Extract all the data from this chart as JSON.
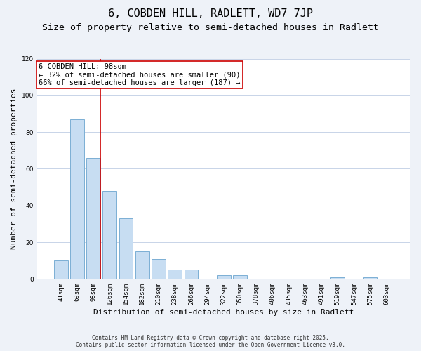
{
  "title": "6, COBDEN HILL, RADLETT, WD7 7JP",
  "subtitle": "Size of property relative to semi-detached houses in Radlett",
  "xlabel": "Distribution of semi-detached houses by size in Radlett",
  "ylabel": "Number of semi-detached properties",
  "bar_labels": [
    "41sqm",
    "69sqm",
    "98sqm",
    "126sqm",
    "154sqm",
    "182sqm",
    "210sqm",
    "238sqm",
    "266sqm",
    "294sqm",
    "322sqm",
    "350sqm",
    "378sqm",
    "406sqm",
    "435sqm",
    "463sqm",
    "491sqm",
    "519sqm",
    "547sqm",
    "575sqm",
    "603sqm"
  ],
  "bar_values": [
    10,
    87,
    66,
    48,
    33,
    15,
    11,
    5,
    5,
    0,
    2,
    2,
    0,
    0,
    0,
    0,
    0,
    1,
    0,
    1,
    0
  ],
  "bar_color": "#c7ddf2",
  "bar_edge_color": "#7bafd4",
  "highlight_bar_index": 2,
  "vline_color": "#cc0000",
  "annotation_line1": "6 COBDEN HILL: 98sqm",
  "annotation_line2": "← 32% of semi-detached houses are smaller (90)",
  "annotation_line3": "66% of semi-detached houses are larger (187) →",
  "annotation_box_color": "#ffffff",
  "annotation_box_edgecolor": "#cc0000",
  "ylim": [
    0,
    120
  ],
  "yticks": [
    0,
    20,
    40,
    60,
    80,
    100,
    120
  ],
  "bg_color": "#eef2f8",
  "plot_bg_color": "#ffffff",
  "grid_color": "#c8d4e8",
  "footer1": "Contains HM Land Registry data © Crown copyright and database right 2025.",
  "footer2": "Contains public sector information licensed under the Open Government Licence v3.0.",
  "title_fontsize": 11,
  "subtitle_fontsize": 9.5,
  "axis_label_fontsize": 8,
  "tick_fontsize": 6.5,
  "annotation_fontsize": 7.5,
  "footer_fontsize": 5.5
}
